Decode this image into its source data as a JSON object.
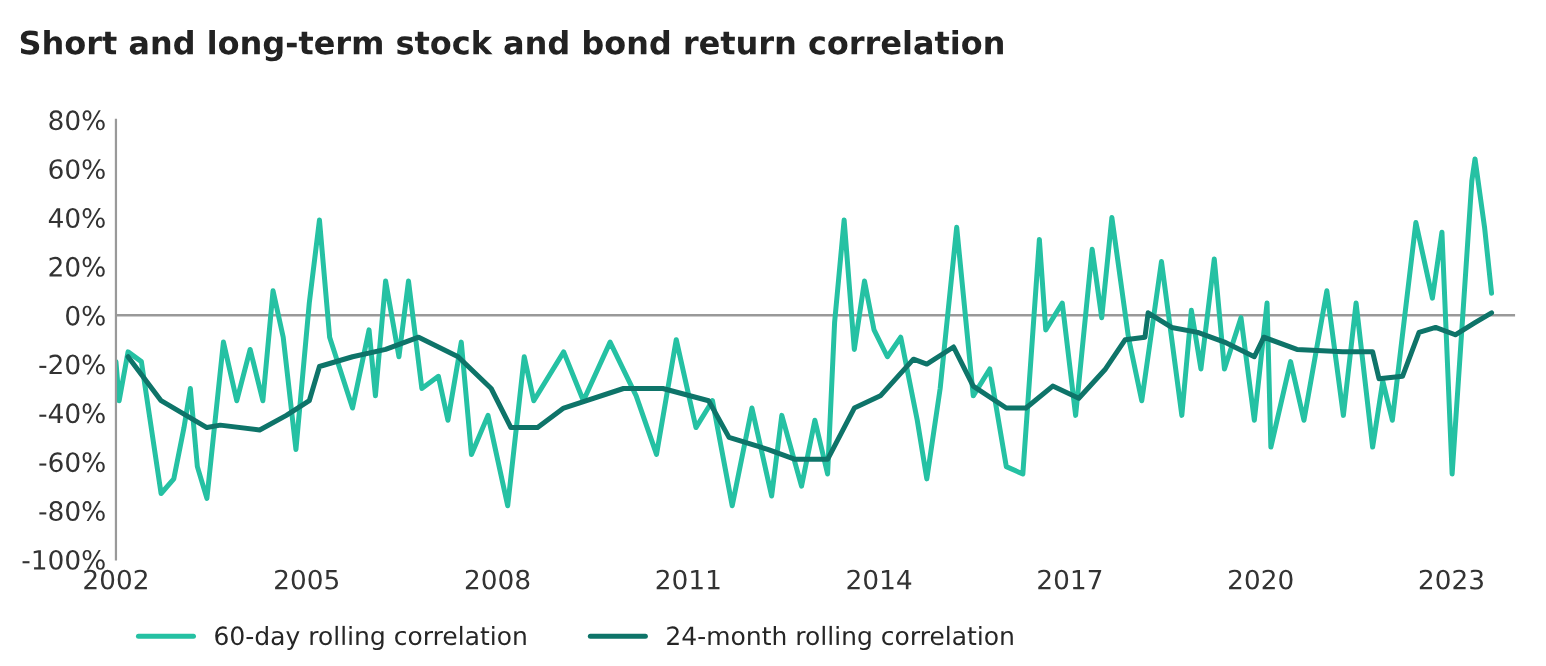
{
  "chart_data": {
    "type": "line",
    "title": "Short and long-term stock and bond return correlation",
    "xlim": [
      2002,
      2024
    ],
    "xticks": [
      2002,
      2005,
      2008,
      2011,
      2014,
      2017,
      2020,
      2023
    ],
    "ylim": [
      -100,
      80
    ],
    "yticks": [
      {
        "value": -100,
        "label": "-100%"
      },
      {
        "value": -80,
        "label": "-80%"
      },
      {
        "value": -60,
        "label": "-60%"
      },
      {
        "value": -40,
        "label": "-40%"
      },
      {
        "value": -20,
        "label": "-20%"
      },
      {
        "value": 0,
        "label": "0%"
      },
      {
        "value": 20,
        "label": "20%"
      },
      {
        "value": 40,
        "label": "40%"
      },
      {
        "value": 60,
        "label": "60%"
      },
      {
        "value": 80,
        "label": "80%"
      }
    ],
    "grid": false,
    "legend": "bottom",
    "marker": "none",
    "line_style": "solid",
    "ref_lines": [
      {
        "axis": "y",
        "value": 0,
        "color": "#999999"
      }
    ],
    "series": [
      {
        "name": "60-day rolling correlation",
        "color": "#25c1a3",
        "x": [
          2002.0,
          2002.05,
          2002.19,
          2002.4,
          2002.71,
          2002.91,
          2003.07,
          2003.17,
          2003.28,
          2003.43,
          2003.69,
          2003.9,
          2004.11,
          2004.31,
          2004.47,
          2004.63,
          2004.83,
          2005.04,
          2005.2,
          2005.36,
          2005.72,
          2005.98,
          2006.08,
          2006.24,
          2006.45,
          2006.6,
          2006.81,
          2007.07,
          2007.22,
          2007.43,
          2007.59,
          2007.85,
          2008.16,
          2008.42,
          2008.57,
          2009.04,
          2009.35,
          2009.77,
          2010.18,
          2010.5,
          2010.81,
          2011.12,
          2011.38,
          2011.69,
          2012.0,
          2012.31,
          2012.47,
          2012.78,
          2012.99,
          2013.19,
          2013.3,
          2013.45,
          2013.61,
          2013.77,
          2013.92,
          2014.13,
          2014.34,
          2014.6,
          2014.75,
          2014.96,
          2015.22,
          2015.48,
          2015.74,
          2016.0,
          2016.26,
          2016.52,
          2016.62,
          2016.88,
          2017.09,
          2017.35,
          2017.5,
          2017.66,
          2017.92,
          2018.13,
          2018.44,
          2018.76,
          2018.91,
          2019.06,
          2019.27,
          2019.43,
          2019.69,
          2019.9,
          2020.1,
          2020.16,
          2020.47,
          2020.68,
          2021.04,
          2021.3,
          2021.5,
          2021.76,
          2021.92,
          2022.07,
          2022.44,
          2022.7,
          2022.85,
          2023.01,
          2023.32,
          2023.37,
          2023.52,
          2023.63
        ],
        "values": [
          -19,
          -35,
          -15,
          -19,
          -73,
          -67,
          -46,
          -30,
          -62,
          -75,
          -11,
          -35,
          -14,
          -35,
          10,
          -9,
          -55,
          5,
          39,
          -9,
          -38,
          -6,
          -33,
          14,
          -17,
          14,
          -30,
          -25,
          -43,
          -11,
          -57,
          -41,
          -78,
          -17,
          -35,
          -15,
          -35,
          -11,
          -33,
          -57,
          -10,
          -46,
          -35,
          -78,
          -38,
          -74,
          -41,
          -70,
          -43,
          -65,
          -3,
          39,
          -14,
          14,
          -6,
          -17,
          -9,
          -43,
          -67,
          -30,
          36,
          -33,
          -22,
          -62,
          -65,
          31,
          -6,
          5,
          -41,
          27,
          -1,
          40,
          -9,
          -35,
          22,
          -41,
          2,
          -22,
          23,
          -22,
          -1,
          -43,
          5,
          -54,
          -19,
          -43,
          10,
          -41,
          5,
          -54,
          -27,
          -43,
          38,
          7,
          34,
          -65,
          55,
          64,
          36,
          9
        ]
      },
      {
        "name": "24-month rolling correlation",
        "color": "#0e7469",
        "x": [
          2002.19,
          2002.71,
          2003.43,
          2003.64,
          2004.26,
          2004.68,
          2005.04,
          2005.2,
          2005.72,
          2006.24,
          2006.76,
          2007.38,
          2007.9,
          2008.21,
          2008.63,
          2009.04,
          2009.98,
          2010.6,
          2011.32,
          2011.64,
          2012.26,
          2012.68,
          2013.19,
          2013.61,
          2014.02,
          2014.54,
          2014.75,
          2015.17,
          2015.48,
          2016.0,
          2016.31,
          2016.73,
          2017.14,
          2017.56,
          2017.87,
          2018.18,
          2018.23,
          2018.6,
          2019.01,
          2019.43,
          2019.9,
          2020.05,
          2020.57,
          2021.29,
          2021.76,
          2021.86,
          2022.23,
          2022.49,
          2022.75,
          2023.06,
          2023.37,
          2023.63
        ],
        "values": [
          -17,
          -35,
          -46,
          -45,
          -47,
          -41,
          -35,
          -21,
          -17,
          -14,
          -9,
          -17,
          -30,
          -46,
          -46,
          -38,
          -30,
          -30,
          -35,
          -50,
          -55,
          -59,
          -59,
          -38,
          -33,
          -18,
          -20,
          -13,
          -29,
          -38,
          -38,
          -29,
          -34,
          -22,
          -10,
          -9,
          1,
          -5,
          -7,
          -11,
          -17,
          -9,
          -14,
          -15,
          -15,
          -26,
          -25,
          -7,
          -5,
          -8,
          -3,
          1
        ]
      }
    ]
  }
}
